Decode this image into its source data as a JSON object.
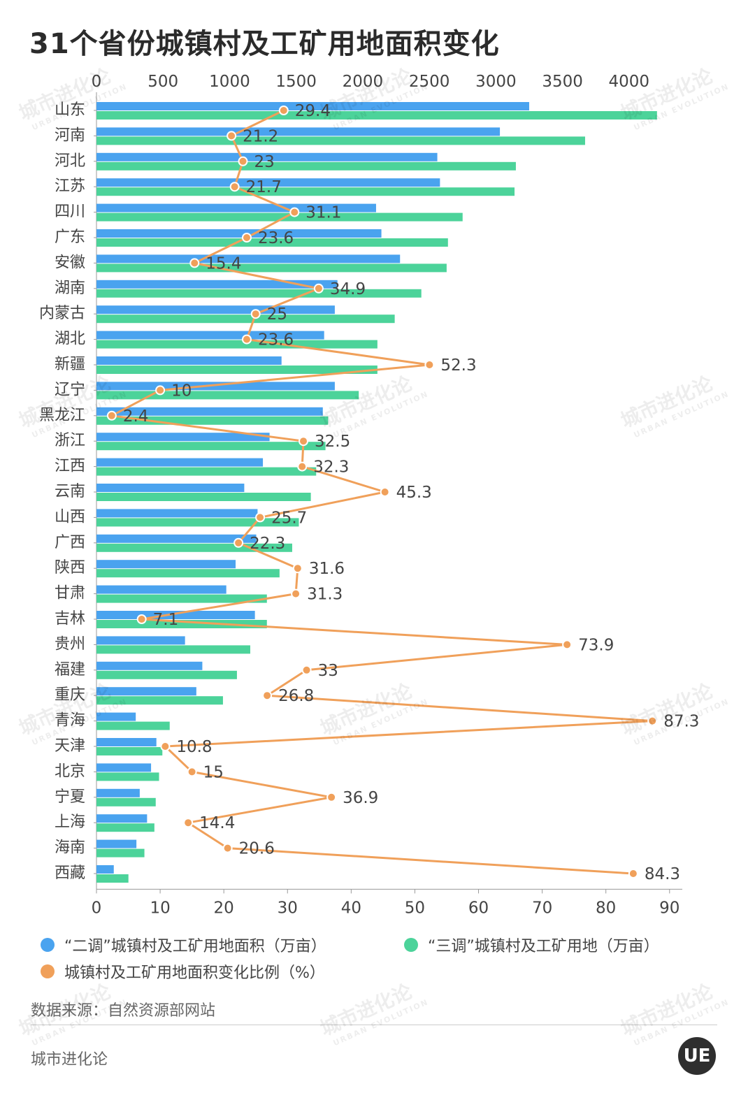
{
  "title": "31个省份城镇村及工矿用地面积变化",
  "colors": {
    "blue": "#4aa3ef",
    "green": "#4cd39a",
    "orange": "#f0a05a",
    "axis": "#999999"
  },
  "chart_data": {
    "type": "bar",
    "title": "31个省份城镇村及工矿用地面积变化",
    "top_axis": {
      "label": "万亩",
      "min": 0,
      "max": 4400,
      "ticks": [
        0,
        500,
        1000,
        1500,
        2000,
        2500,
        3000,
        3500,
        4000
      ]
    },
    "bottom_axis": {
      "label": "%",
      "min": 0,
      "max": 92,
      "ticks": [
        0,
        10,
        20,
        30,
        40,
        50,
        60,
        70,
        80,
        90
      ]
    },
    "categories": [
      "山东",
      "河南",
      "河北",
      "江苏",
      "四川",
      "广东",
      "安徽",
      "湖南",
      "内蒙古",
      "湖北",
      "新疆",
      "辽宁",
      "黑龙江",
      "浙江",
      "江西",
      "云南",
      "山西",
      "广西",
      "陕西",
      "甘肃",
      "吉林",
      "贵州",
      "福建",
      "重庆",
      "青海",
      "天津",
      "北京",
      "宁夏",
      "上海",
      "海南",
      "西藏"
    ],
    "series": [
      {
        "name": "“二调”城镇村及工矿用地面积（万亩）",
        "axis": "top",
        "values": [
          3250,
          3030,
          2560,
          2580,
          2100,
          2140,
          2280,
          1810,
          1790,
          1710,
          1390,
          1790,
          1700,
          1300,
          1250,
          1110,
          1210,
          1200,
          1045,
          975,
          1190,
          665,
          795,
          750,
          295,
          450,
          410,
          325,
          380,
          300,
          130
        ]
      },
      {
        "name": "“三调”城镇村及工矿用地（万亩）",
        "axis": "top",
        "values": [
          4210,
          3670,
          3150,
          3140,
          2750,
          2640,
          2630,
          2440,
          2240,
          2110,
          2110,
          1970,
          1740,
          1720,
          1650,
          1610,
          1520,
          1470,
          1375,
          1280,
          1280,
          1155,
          1055,
          950,
          550,
          495,
          470,
          445,
          435,
          360,
          240
        ]
      },
      {
        "name": "城镇村及工矿用地面积变化比例（%）",
        "axis": "bottom",
        "type": "line",
        "values": [
          29.4,
          21.2,
          23,
          21.7,
          31.1,
          23.6,
          15.4,
          34.9,
          25,
          23.6,
          52.3,
          10,
          2.4,
          32.5,
          32.3,
          45.3,
          25.7,
          22.3,
          31.6,
          31.3,
          7.1,
          73.9,
          33,
          26.8,
          87.3,
          10.8,
          15,
          36.9,
          14.4,
          20.6,
          84.3
        ],
        "labels": [
          "29.4",
          "21.2",
          "23",
          "21.7",
          "31.1",
          "23.6",
          "15.4",
          "34.9",
          "25",
          "23.6",
          "52.3",
          "10",
          "2.4",
          "32.5",
          "32.3",
          "45.3",
          "25.7",
          "22.3",
          "31.6",
          "31.3",
          "7.1",
          "73.9",
          "33",
          "26.8",
          "87.3",
          "10.8",
          "15",
          "36.9",
          "14.4",
          "20.6",
          "84.3"
        ]
      }
    ]
  },
  "legend": {
    "item1": "“二调”城镇村及工矿用地面积（万亩）",
    "item2": "“三调”城镇村及工矿用地（万亩）",
    "item3": "城镇村及工矿用地面积变化比例（%）"
  },
  "source": "数据来源：自然资源部网站",
  "brand": "城市进化论",
  "logo_text": "UE",
  "watermark": {
    "cn": "城市进化论",
    "en": "URBAN EVOLUTION"
  }
}
